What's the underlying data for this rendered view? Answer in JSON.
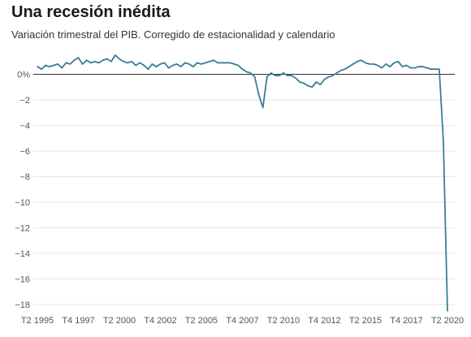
{
  "chart_data": {
    "type": "line",
    "title": "Una recesión inédita",
    "subtitle": "Variación trimestral del PIB. Corregido de estacionalidad y calendario",
    "xlabel": "",
    "ylabel": "",
    "y_unit": "%",
    "ylim": [
      -18.5,
      1.5
    ],
    "yticks": [
      0,
      -2,
      -4,
      -6,
      -8,
      -10,
      -12,
      -14,
      -16,
      -18
    ],
    "ytick_labels": [
      "0%",
      "−2",
      "−4",
      "−6",
      "−8",
      "−10",
      "−12",
      "−14",
      "−16",
      "−18"
    ],
    "x_start": {
      "year": 1995,
      "quarter": 2
    },
    "xtick_labels": [
      "T2 1995",
      "T4 1997",
      "T2 2000",
      "T4 2002",
      "T2 2005",
      "T4 2007",
      "T2 2010",
      "T4 2012",
      "T2 2015",
      "T4 2017",
      "T2 2020"
    ],
    "grid": true,
    "series": [
      {
        "color": "#3a7d98",
        "values": [
          0.6,
          0.4,
          0.7,
          0.6,
          0.7,
          0.8,
          0.5,
          0.9,
          0.8,
          1.1,
          1.3,
          0.8,
          1.1,
          0.9,
          1.0,
          0.9,
          1.1,
          1.2,
          1.0,
          1.5,
          1.2,
          1.0,
          0.9,
          1.0,
          0.7,
          0.9,
          0.7,
          0.4,
          0.8,
          0.6,
          0.8,
          0.9,
          0.5,
          0.7,
          0.8,
          0.6,
          0.9,
          0.8,
          0.6,
          0.9,
          0.8,
          0.9,
          1.0,
          1.1,
          0.9,
          0.9,
          0.9,
          0.9,
          0.8,
          0.7,
          0.4,
          0.2,
          0.1,
          -0.2,
          -1.6,
          -2.6,
          -0.2,
          0.1,
          -0.1,
          -0.1,
          0.1,
          -0.1,
          -0.1,
          -0.3,
          -0.6,
          -0.7,
          -0.9,
          -1.0,
          -0.6,
          -0.8,
          -0.4,
          -0.2,
          -0.1,
          0.1,
          0.3,
          0.4,
          0.6,
          0.8,
          1.0,
          1.1,
          0.9,
          0.8,
          0.8,
          0.7,
          0.5,
          0.8,
          0.6,
          0.9,
          1.0,
          0.6,
          0.7,
          0.5,
          0.5,
          0.6,
          0.6,
          0.5,
          0.4,
          0.4,
          0.4,
          -5.2,
          -18.5
        ]
      }
    ]
  }
}
